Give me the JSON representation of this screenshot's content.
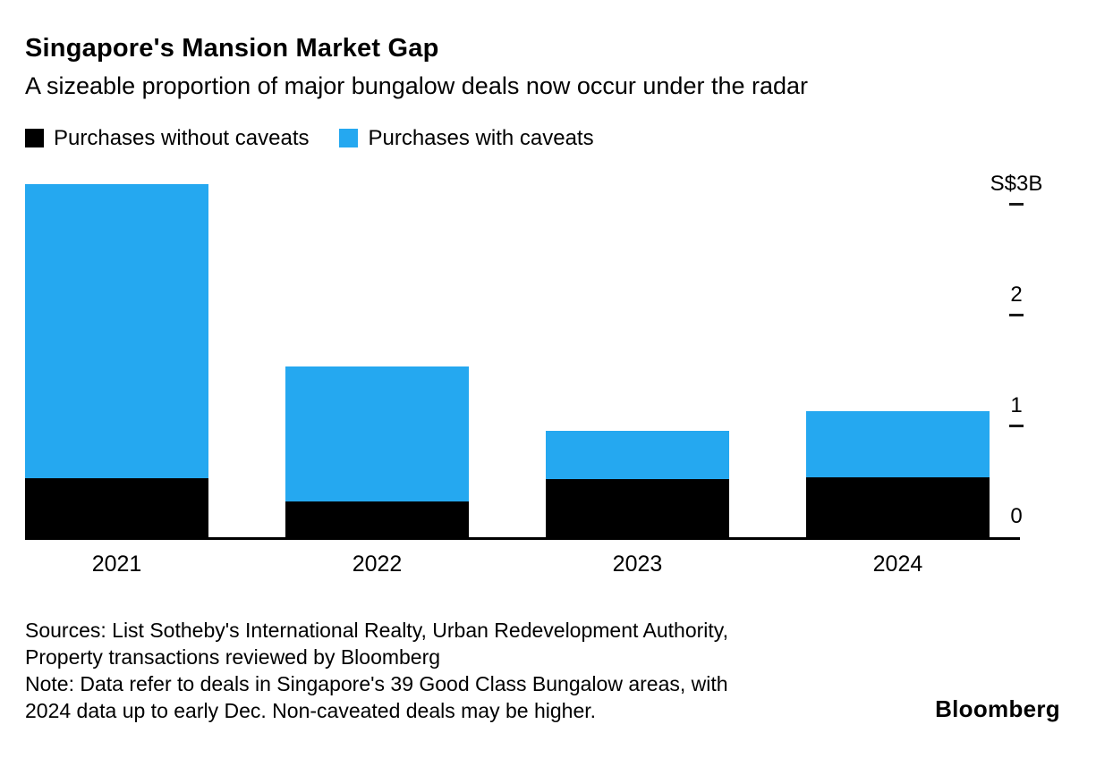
{
  "header": {
    "title": "Singapore's Mansion Market Gap",
    "subtitle": "A sizeable proportion of major bungalow deals now occur under the radar"
  },
  "legend": [
    {
      "label": "Purchases without caveats",
      "color": "#000000"
    },
    {
      "label": "Purchases with caveats",
      "color": "#25a8f0"
    }
  ],
  "chart_data": {
    "type": "bar",
    "stacked": true,
    "categories": [
      "2021",
      "2022",
      "2023",
      "2024"
    ],
    "series": [
      {
        "name": "Purchases without caveats",
        "color": "#000000",
        "values": [
          0.53,
          0.32,
          0.52,
          0.54
        ]
      },
      {
        "name": "Purchases with caveats",
        "color": "#25a8f0",
        "values": [
          2.66,
          1.22,
          0.44,
          0.6
        ]
      }
    ],
    "unit": "S$B",
    "ylim": [
      0,
      3.2
    ],
    "yticks": [
      {
        "label": "S$3B",
        "value": 3
      },
      {
        "label": "2",
        "value": 2
      },
      {
        "label": "1",
        "value": 1
      },
      {
        "label": "0",
        "value": 0
      }
    ],
    "axis_side": "right",
    "grid": false,
    "legend_position": "top"
  },
  "footer": {
    "sources_lines": [
      "Sources: List Sotheby's International Realty, Urban Redevelopment Authority,",
      "Property transactions reviewed by Bloomberg"
    ],
    "note_lines": [
      "Note: Data refer to deals in Singapore's 39 Good Class Bungalow areas, with",
      "2024 data up to early Dec. Non-caveated deals may be higher."
    ],
    "brand": "Bloomberg"
  }
}
